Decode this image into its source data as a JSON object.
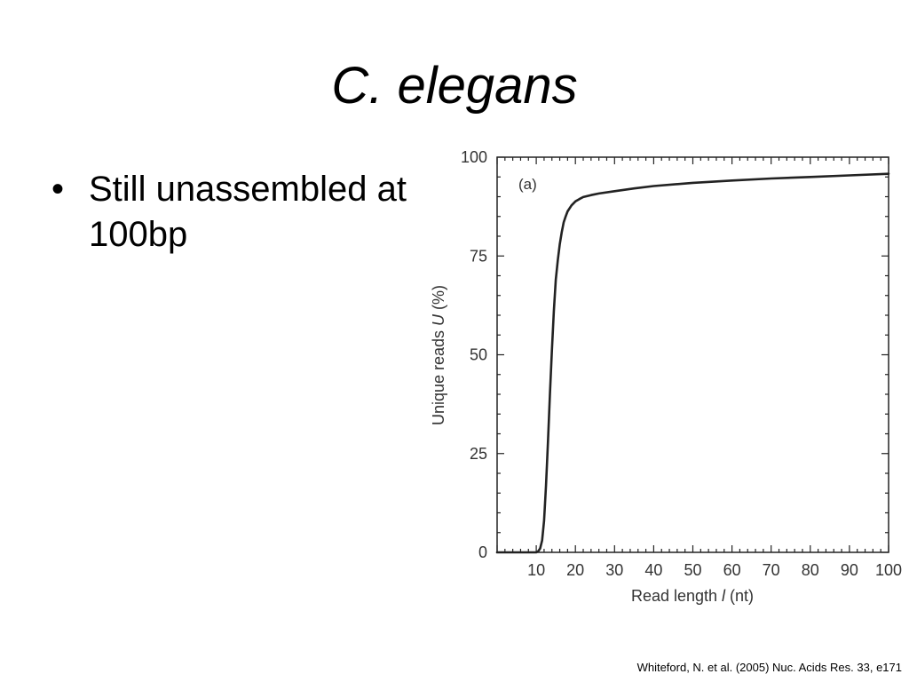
{
  "slide": {
    "title": "C. elegans",
    "bullets": [
      {
        "marker": "•",
        "text": "Still unassembled at 100bp"
      }
    ],
    "citation": "Whiteford, N. et al. (2005) Nuc. Acids Res. 33, e171"
  },
  "chart_data": {
    "type": "line",
    "panel_label": "(a)",
    "xlabel": "Read length l (nt)",
    "xlabel_parts": {
      "before": "Read length ",
      "italic": "l",
      "after": " (nt)"
    },
    "ylabel": "Unique reads U (%)",
    "ylabel_parts": {
      "before": "Unique reads ",
      "italic": "U",
      "after": " (%)"
    },
    "xlim": [
      0,
      100
    ],
    "ylim": [
      0,
      100
    ],
    "x_ticks": [
      10,
      20,
      30,
      40,
      50,
      60,
      70,
      80,
      90,
      100
    ],
    "y_ticks": [
      0,
      25,
      50,
      75,
      100
    ],
    "grid": false,
    "series": [
      {
        "color": "#222222",
        "x": [
          0,
          10,
          10.5,
          11,
          11.5,
          12,
          12.5,
          13,
          13.5,
          14,
          14.5,
          15,
          15.5,
          16,
          16.5,
          17,
          17.5,
          18,
          19,
          20,
          21,
          22,
          24,
          26,
          30,
          35,
          40,
          50,
          60,
          70,
          80,
          90,
          100
        ],
        "y": [
          0,
          0,
          0.3,
          1,
          3,
          8,
          17,
          28,
          40,
          51,
          61,
          69,
          74,
          78,
          81,
          83.5,
          85,
          86.3,
          87.8,
          88.8,
          89.4,
          89.9,
          90.4,
          90.8,
          91.4,
          92.1,
          92.7,
          93.5,
          94.1,
          94.6,
          95.0,
          95.4,
          95.8
        ]
      }
    ]
  }
}
